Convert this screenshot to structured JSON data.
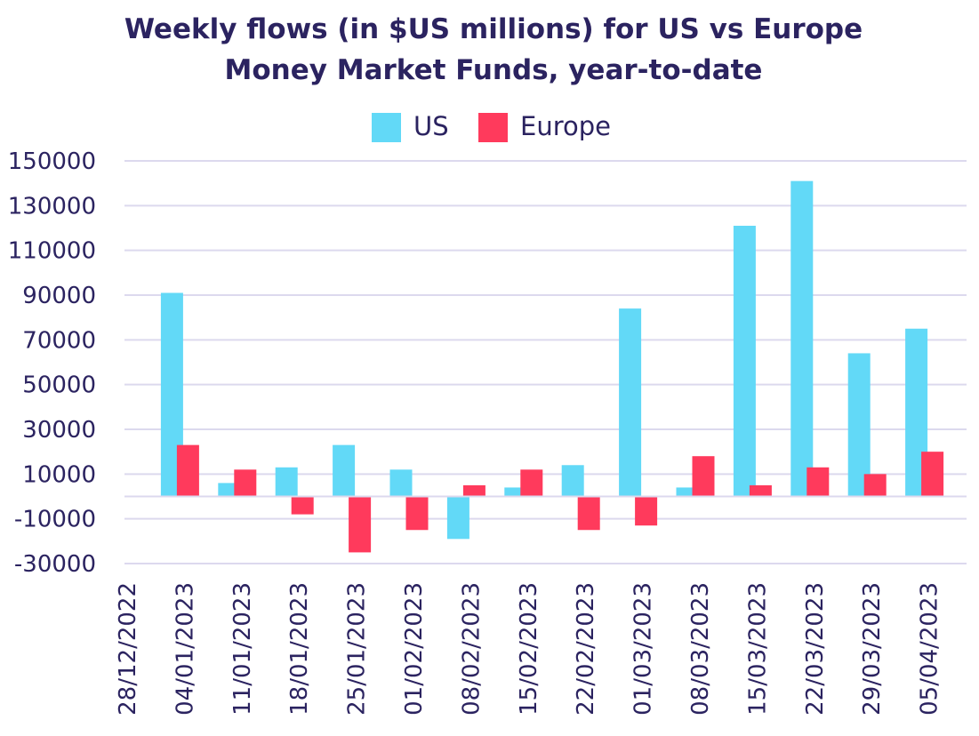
{
  "chart_data": {
    "type": "bar",
    "title_lines": [
      "Weekly flows (in $US millions) for US vs Europe",
      "Money Market Funds, year-to-date"
    ],
    "xlabel": "",
    "ylabel": "",
    "categories": [
      "28/12/2022",
      "04/01/2023",
      "11/01/2023",
      "18/01/2023",
      "25/01/2023",
      "01/02/2023",
      "08/02/2023",
      "15/02/2023",
      "22/02/2023",
      "01/03/2023",
      "08/03/2023",
      "15/03/2023",
      "22/03/2023",
      "29/03/2023",
      "05/04/2023"
    ],
    "yticks": [
      150000,
      130000,
      110000,
      90000,
      70000,
      50000,
      30000,
      10000,
      -10000,
      -30000
    ],
    "ylim": [
      -30000,
      150000
    ],
    "series": [
      {
        "name": "US",
        "color": "#62d9f7",
        "values": [
          null,
          91000,
          6000,
          13000,
          23000,
          12000,
          -19000,
          4000,
          14000,
          84000,
          4000,
          121000,
          141000,
          64000,
          75000
        ]
      },
      {
        "name": "Europe",
        "color": "#ff3a5c",
        "values": [
          null,
          23000,
          12000,
          -8000,
          -25000,
          -15000,
          5000,
          12000,
          -15000,
          -13000,
          18000,
          5000,
          13000,
          10000,
          20000
        ]
      }
    ],
    "grid": true,
    "legend_position": "top-center"
  }
}
